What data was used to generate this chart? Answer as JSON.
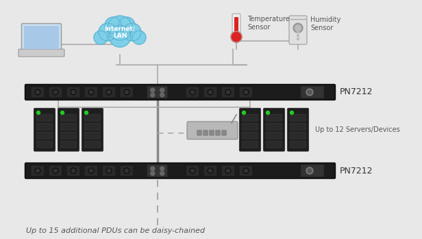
{
  "bg_color": "#e8e8e8",
  "title_bottom": "Up to 15 additional PDUs can be daisy-chained",
  "label_servers": "Up to 12 Servers/Devices",
  "label_pdu": "PN7212",
  "label_temp": "Temperature\nSensor",
  "label_humidity": "Humidity\nSensor",
  "label_internet": "Internet/\nLAN",
  "pdu_color": "#1c1c1c",
  "text_color": "#555555",
  "line_color": "#aaaaaa",
  "cloud_color": "#7ecfe8",
  "cloud_edge": "#5ab0cc"
}
